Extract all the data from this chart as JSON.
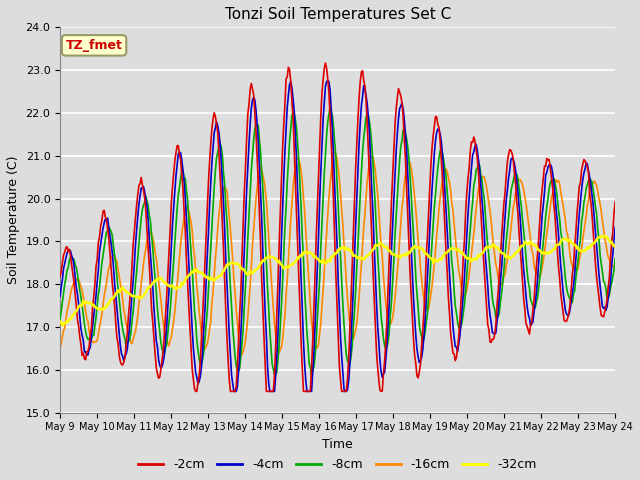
{
  "title": "Tonzi Soil Temperatures Set C",
  "xlabel": "Time",
  "ylabel": "Soil Temperature (C)",
  "ylim": [
    15.0,
    24.0
  ],
  "yticks": [
    15.0,
    16.0,
    17.0,
    18.0,
    19.0,
    20.0,
    21.0,
    22.0,
    23.0,
    24.0
  ],
  "annotation_label": "TZ_fmet",
  "annotation_box_facecolor": "#ffffcc",
  "annotation_box_edgecolor": "#999966",
  "annotation_text_color": "#cc0000",
  "series_colors": {
    "-2cm": "#dd0000",
    "-4cm": "#0000cc",
    "-8cm": "#00aa00",
    "-16cm": "#ff8800",
    "-32cm": "#ffff00"
  },
  "legend_colors": [
    "#dd0000",
    "#0000cc",
    "#00aa00",
    "#ff8800",
    "#ffff00"
  ],
  "legend_labels": [
    "-2cm",
    "-4cm",
    "-8cm",
    "-16cm",
    "-32cm"
  ],
  "plot_bg_color": "#dddddd",
  "grid_color": "#ffffff",
  "xtick_labels": [
    "May 9",
    "May 10",
    "May 11",
    "May 12",
    "May 13",
    "May 14",
    "May 15",
    "May 16",
    "May 17",
    "May 18",
    "May 19",
    "May 20",
    "May 21",
    "May 22",
    "May 23",
    "May 24"
  ],
  "n_points": 480,
  "figsize": [
    6.4,
    4.8
  ],
  "dpi": 100
}
